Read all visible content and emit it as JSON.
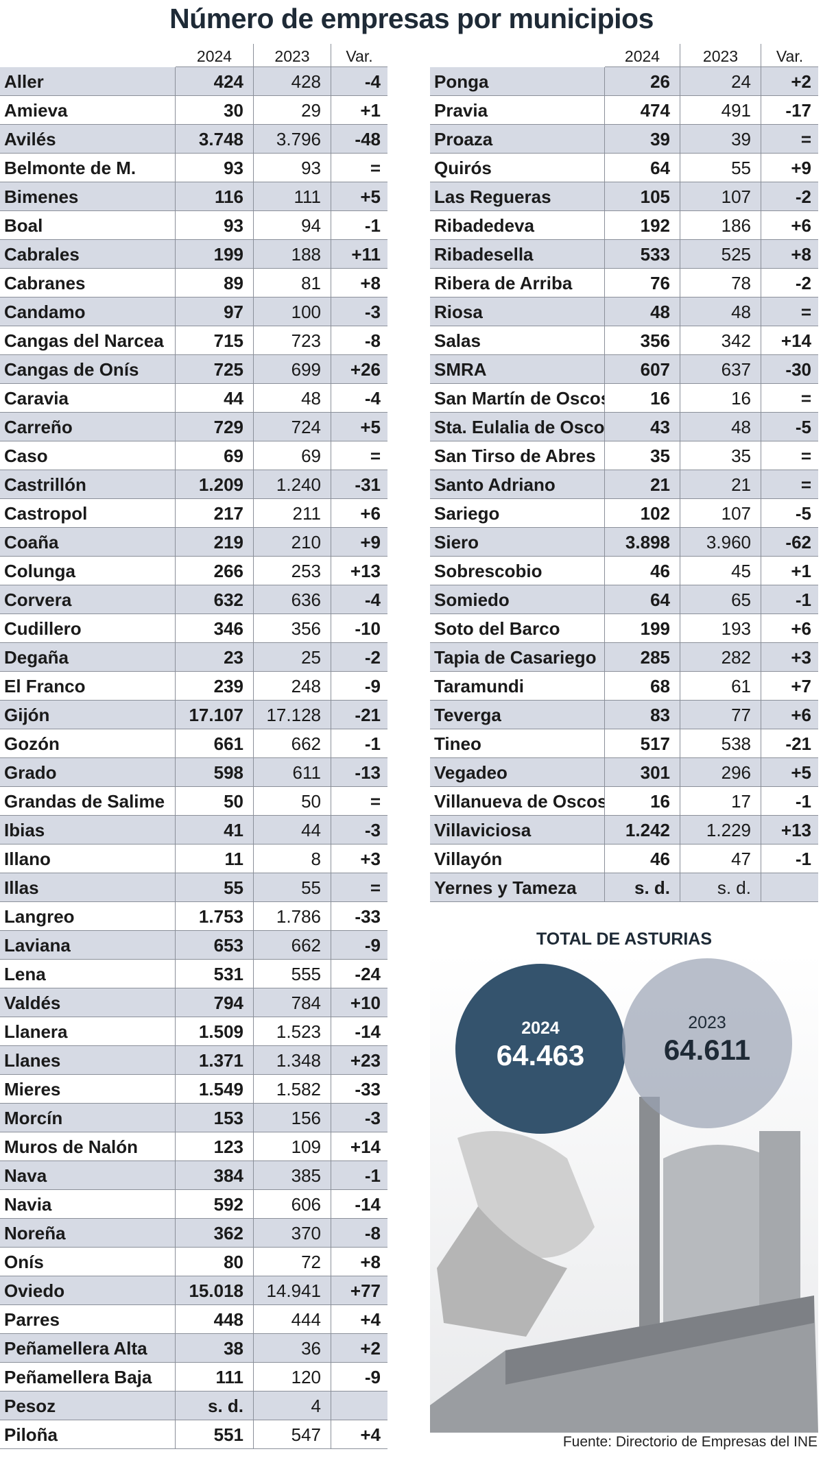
{
  "title": "Número de empresas por municipios",
  "tables": [
    {
      "headers": [
        "2024",
        "2023",
        "Var."
      ],
      "rows": [
        [
          "Aller",
          "424",
          "428",
          "-4"
        ],
        [
          "Amieva",
          "30",
          "29",
          "+1"
        ],
        [
          "Avilés",
          "3.748",
          "3.796",
          "-48"
        ],
        [
          "Belmonte de M.",
          "93",
          "93",
          "="
        ],
        [
          "Bimenes",
          "116",
          "111",
          "+5"
        ],
        [
          "Boal",
          "93",
          "94",
          "-1"
        ],
        [
          "Cabrales",
          "199",
          "188",
          "+11"
        ],
        [
          "Cabranes",
          "89",
          "81",
          "+8"
        ],
        [
          "Candamo",
          "97",
          "100",
          "-3"
        ],
        [
          "Cangas del Narcea",
          "715",
          "723",
          "-8"
        ],
        [
          "Cangas de Onís",
          "725",
          "699",
          "+26"
        ],
        [
          "Caravia",
          "44",
          "48",
          "-4"
        ],
        [
          "Carreño",
          "729",
          "724",
          "+5"
        ],
        [
          "Caso",
          "69",
          "69",
          "="
        ],
        [
          "Castrillón",
          "1.209",
          "1.240",
          "-31"
        ],
        [
          "Castropol",
          "217",
          "211",
          "+6"
        ],
        [
          "Coaña",
          "219",
          "210",
          "+9"
        ],
        [
          "Colunga",
          "266",
          "253",
          "+13"
        ],
        [
          "Corvera",
          "632",
          "636",
          "-4"
        ],
        [
          "Cudillero",
          "346",
          "356",
          "-10"
        ],
        [
          "Degaña",
          "23",
          "25",
          "-2"
        ],
        [
          "El Franco",
          "239",
          "248",
          "-9"
        ],
        [
          "Gijón",
          "17.107",
          "17.128",
          "-21"
        ],
        [
          "Gozón",
          "661",
          "662",
          "-1"
        ],
        [
          "Grado",
          "598",
          "611",
          "-13"
        ],
        [
          "Grandas de Salime",
          "50",
          "50",
          "="
        ],
        [
          "Ibias",
          "41",
          "44",
          "-3"
        ],
        [
          "Illano",
          "11",
          "8",
          "+3"
        ],
        [
          "Illas",
          "55",
          "55",
          "="
        ],
        [
          "Langreo",
          "1.753",
          "1.786",
          "-33"
        ],
        [
          "Laviana",
          "653",
          "662",
          "-9"
        ],
        [
          "Lena",
          "531",
          "555",
          "-24"
        ],
        [
          "Valdés",
          "794",
          "784",
          "+10"
        ],
        [
          "Llanera",
          "1.509",
          "1.523",
          "-14"
        ],
        [
          "Llanes",
          "1.371",
          "1.348",
          "+23"
        ],
        [
          "Mieres",
          "1.549",
          "1.582",
          "-33"
        ],
        [
          "Morcín",
          "153",
          "156",
          "-3"
        ],
        [
          "Muros de Nalón",
          "123",
          "109",
          "+14"
        ],
        [
          "Nava",
          "384",
          "385",
          "-1"
        ],
        [
          "Navia",
          "592",
          "606",
          "-14"
        ],
        [
          "Noreña",
          "362",
          "370",
          "-8"
        ],
        [
          "Onís",
          "80",
          "72",
          "+8"
        ],
        [
          "Oviedo",
          "15.018",
          "14.941",
          "+77"
        ],
        [
          "Parres",
          "448",
          "444",
          "+4"
        ],
        [
          "Peñamellera Alta",
          "38",
          "36",
          "+2"
        ],
        [
          "Peñamellera Baja",
          "111",
          "120",
          "-9"
        ],
        [
          "Pesoz",
          "s. d.",
          "4"
        ],
        [
          "Piloña",
          "551",
          "547",
          "+4"
        ]
      ]
    },
    {
      "headers": [
        "2024",
        "2023",
        "Var."
      ],
      "rows": [
        [
          "Ponga",
          "26",
          "24",
          "+2"
        ],
        [
          "Pravia",
          "474",
          "491",
          "-17"
        ],
        [
          "Proaza",
          "39",
          "39",
          "="
        ],
        [
          "Quirós",
          "64",
          "55",
          "+9"
        ],
        [
          "Las Regueras",
          "105",
          "107",
          "-2"
        ],
        [
          "Ribadedeva",
          "192",
          "186",
          "+6"
        ],
        [
          "Ribadesella",
          "533",
          "525",
          "+8"
        ],
        [
          "Ribera de Arriba",
          "76",
          "78",
          "-2"
        ],
        [
          "Riosa",
          "48",
          "48",
          "="
        ],
        [
          "Salas",
          "356",
          "342",
          "+14"
        ],
        [
          "SMRA",
          "607",
          "637",
          "-30"
        ],
        [
          "San Martín de Oscos",
          "16",
          "16",
          "="
        ],
        [
          "Sta. Eulalia de Oscos",
          "43",
          "48",
          "-5"
        ],
        [
          "San Tirso de Abres",
          "35",
          "35",
          "="
        ],
        [
          "Santo Adriano",
          "21",
          "21",
          "="
        ],
        [
          "Sariego",
          "102",
          "107",
          "-5"
        ],
        [
          "Siero",
          "3.898",
          "3.960",
          "-62"
        ],
        [
          "Sobrescobio",
          "46",
          "45",
          "+1"
        ],
        [
          "Somiedo",
          "64",
          "65",
          "-1"
        ],
        [
          "Soto del Barco",
          "199",
          "193",
          "+6"
        ],
        [
          "Tapia de Casariego",
          "285",
          "282",
          "+3"
        ],
        [
          "Taramundi",
          "68",
          "61",
          "+7"
        ],
        [
          "Teverga",
          "83",
          "77",
          "+6"
        ],
        [
          "Tineo",
          "517",
          "538",
          "-21"
        ],
        [
          "Vegadeo",
          "301",
          "296",
          "+5"
        ],
        [
          "Villanueva de Oscos",
          "16",
          "17",
          "-1"
        ],
        [
          "Villaviciosa",
          "1.242",
          "1.229",
          "+13"
        ],
        [
          "Villayón",
          "46",
          "47",
          "-1"
        ],
        [
          "Yernes y Tameza",
          "s. d.",
          "s. d."
        ]
      ]
    }
  ],
  "total": {
    "title": "TOTAL DE ASTURIAS",
    "items": [
      {
        "year": "2024",
        "value": "64.463"
      },
      {
        "year": "2023",
        "value": "64.611"
      }
    ]
  },
  "source": "Fuente: Directorio de Empresas del INE"
}
